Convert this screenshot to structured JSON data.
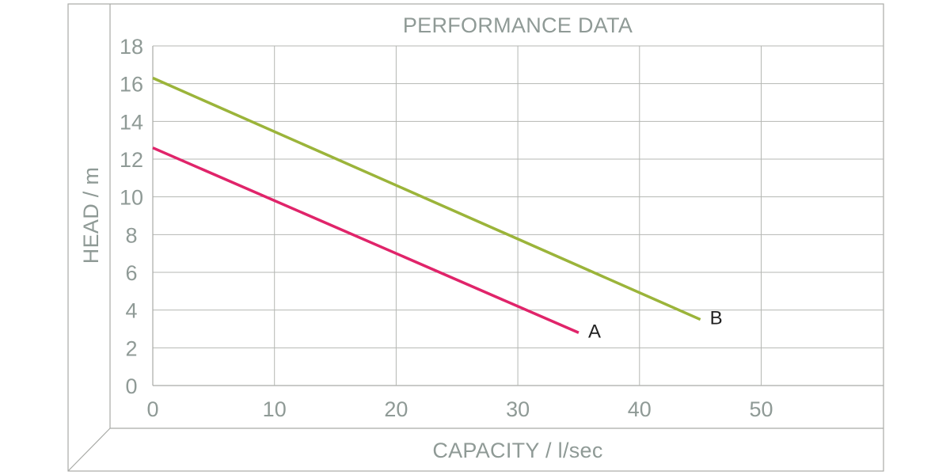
{
  "chart_data": {
    "type": "line",
    "title": "PERFORMANCE DATA",
    "xlabel": "CAPACITY / l/sec",
    "ylabel": "HEAD / m",
    "xlim": [
      0,
      60
    ],
    "ylim": [
      0,
      18
    ],
    "xticks": [
      "0",
      "10",
      "20",
      "30",
      "40",
      "50"
    ],
    "yticks": [
      "0",
      "2",
      "4",
      "6",
      "8",
      "10",
      "12",
      "14",
      "16",
      "18"
    ],
    "grid": true,
    "series": [
      {
        "name": "A",
        "color": "#e0246a",
        "points": [
          [
            0,
            12.6
          ],
          [
            35,
            2.8
          ]
        ]
      },
      {
        "name": "B",
        "color": "#9bb43a",
        "points": [
          [
            0,
            16.3
          ],
          [
            45,
            3.5
          ]
        ]
      }
    ]
  }
}
